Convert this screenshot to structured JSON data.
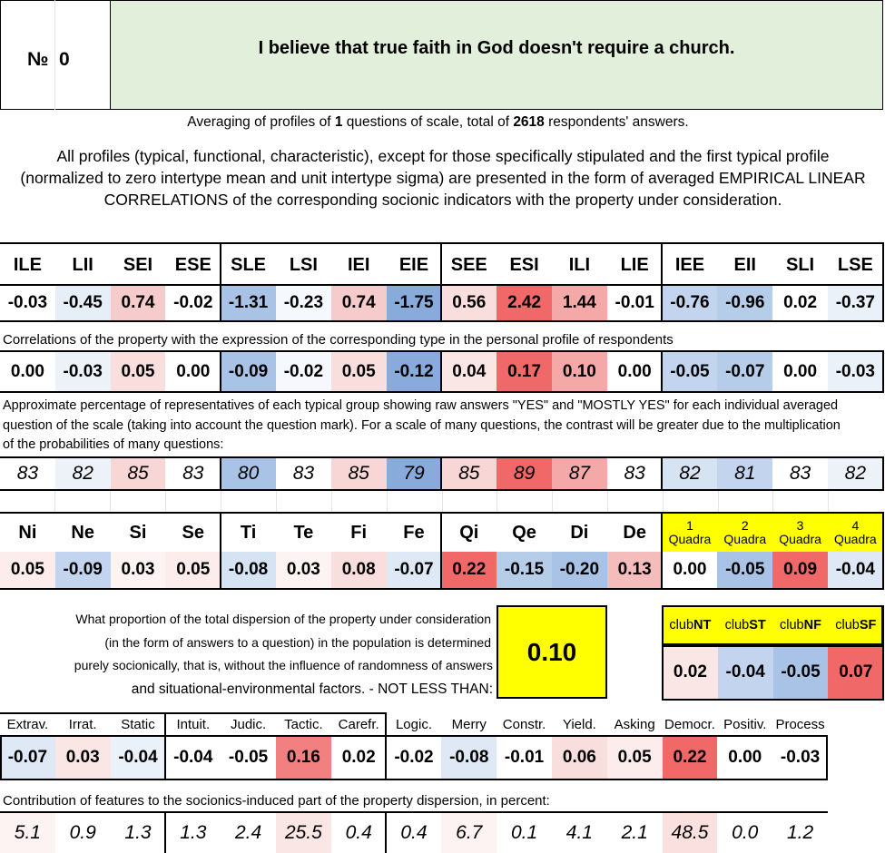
{
  "header": {
    "number_label": "№",
    "number_value": "0",
    "statement": "I believe that true faith in God doesn't require a church."
  },
  "summary": {
    "prefix": "Averaging of profiles of ",
    "questions": "1",
    "middle": " questions of scale, total of ",
    "respondents": "2618",
    "suffix": " respondents' answers."
  },
  "description": "All profiles (typical, functional, characteristic), except for those specifically stipulated and the first typical profile (normalized to zero intertype mean and unit intertype sigma) are presented in the form of averaged EMPIRICAL LINEAR CORRELATIONS of the corresponding socionic indicators with the property under consideration.",
  "types": {
    "labels": [
      "ILE",
      "LII",
      "SEI",
      "ESE",
      "SLE",
      "LSI",
      "IEI",
      "EIE",
      "SEE",
      "ESI",
      "ILI",
      "LIE",
      "IEE",
      "EII",
      "SLI",
      "LSE"
    ],
    "normalized": [
      "-0.03",
      "-0.45",
      "0.74",
      "-0.02",
      "-1.31",
      "-0.23",
      "0.74",
      "-1.75",
      "0.56",
      "2.42",
      "1.44",
      "-0.01",
      "-0.76",
      "-0.96",
      "0.02",
      "-0.37"
    ],
    "normalized_colors": [
      "#ffffff",
      "#e6eef8",
      "#f6cbcb",
      "#ffffff",
      "#a9c3e6",
      "#f5f8fc",
      "#f6cbcb",
      "#88abdc",
      "#f9dede",
      "#f06868",
      "#f5a8a8",
      "#ffffff",
      "#c3d5ee",
      "#b6cde9",
      "#ffffff",
      "#ebf1f9"
    ],
    "correlation_note": "Correlations of the property with the expression of the corresponding type in the personal profile of respondents",
    "correlations": [
      "0.00",
      "-0.03",
      "0.05",
      "0.00",
      "-0.09",
      "-0.02",
      "0.05",
      "-0.12",
      "0.04",
      "0.17",
      "0.10",
      "0.00",
      "-0.05",
      "-0.07",
      "0.00",
      "-0.03"
    ],
    "correlation_colors": [
      "#ffffff",
      "#edf2f9",
      "#f9dede",
      "#ffffff",
      "#a9c3e6",
      "#f5f8fc",
      "#f9dede",
      "#88abdc",
      "#fbe6e6",
      "#f06868",
      "#f5a8a8",
      "#ffffff",
      "#c3d5ee",
      "#b6cde9",
      "#ffffff",
      "#ebf1f9"
    ],
    "percentage_note": "Approximate percentage of representatives of each typical group showing raw answers \"YES\" and \"MOSTLY YES\" for each individual averaged question of the scale (taking into account the question mark). For a scale of many questions, the contrast will be greater due to the multiplication of the probabilities of many questions:",
    "percentages": [
      "83",
      "82",
      "85",
      "83",
      "80",
      "83",
      "85",
      "79",
      "85",
      "89",
      "87",
      "83",
      "82",
      "81",
      "83",
      "82"
    ],
    "percentage_colors": [
      "#ffffff",
      "#edf2f9",
      "#f9d6d6",
      "#ffffff",
      "#a9c3e6",
      "#ffffff",
      "#f9d6d6",
      "#88abdc",
      "#f9d6d6",
      "#f06868",
      "#f5a8a8",
      "#ffffff",
      "#d6e3f3",
      "#c3d5ee",
      "#ffffff",
      "#edf2f9"
    ]
  },
  "functions": {
    "labels": [
      "Ni",
      "Ne",
      "Si",
      "Se",
      "Ti",
      "Te",
      "Fi",
      "Fe",
      "Qi",
      "Qe",
      "Di",
      "De"
    ],
    "values": [
      "0.05",
      "-0.09",
      "0.03",
      "0.05",
      "-0.08",
      "0.03",
      "0.08",
      "-0.07",
      "0.22",
      "-0.15",
      "-0.20",
      "0.13"
    ],
    "colors": [
      "#fcecec",
      "#c3d5ee",
      "#fdf3f3",
      "#fcecec",
      "#d6e3f3",
      "#fdf3f3",
      "#f9dede",
      "#dfe9f5",
      "#f06868",
      "#b6cde9",
      "#a9c3e6",
      "#f5bcbc"
    ],
    "quadra_labels": [
      [
        "1",
        "Quadra"
      ],
      [
        "2",
        "Quadra"
      ],
      [
        "3",
        "Quadra"
      ],
      [
        "4",
        "Quadra"
      ]
    ],
    "quadra_values": [
      "0.00",
      "-0.05",
      "0.09",
      "-0.04"
    ],
    "quadra_colors": [
      "#ffffff",
      "#a9c3e6",
      "#f06868",
      "#dfe9f5"
    ]
  },
  "dispersion": {
    "lines": [
      "What proportion of the total dispersion of the property under consideration",
      "(in the form of answers to a question) in the population is determined",
      "purely socionically, that is, without the influence of randomness of answers",
      "and situational-environmental factors. - NOT LESS THAN:"
    ],
    "value": "0.10",
    "club_prefix": "club",
    "clubs": [
      "NT",
      "ST",
      "NF",
      "SF"
    ],
    "club_values": [
      "0.02",
      "-0.04",
      "-0.05",
      "0.07"
    ],
    "club_colors": [
      "#fbe6e6",
      "#c3d5ee",
      "#a9c3e6",
      "#f06868"
    ]
  },
  "traits": {
    "labels": [
      "Extrav.",
      "Irrat.",
      "Static",
      "Intuit.",
      "Judic.",
      "Tactic.",
      "Carefr.",
      "Logic.",
      "Merry",
      "Constr.",
      "Yield.",
      "Asking",
      "Democr.",
      "Positiv.",
      "Process"
    ],
    "values": [
      "-0.07",
      "0.03",
      "-0.04",
      "-0.04",
      "-0.05",
      "0.16",
      "0.02",
      "-0.02",
      "-0.08",
      "-0.01",
      "0.06",
      "0.05",
      "0.22",
      "0.00",
      "-0.03"
    ],
    "colors": [
      "#dfe9f5",
      "#fbe6e6",
      "#ebf1f9",
      "#ffffff",
      "#ffffff",
      "#f28080",
      "#ffffff",
      "#ffffff",
      "#dfe9f5",
      "#ffffff",
      "#f9dede",
      "#fcecec",
      "#f06868",
      "#ffffff",
      "#ffffff"
    ],
    "contribution_note": "Contribution of features to the socionics-induced part of the property dispersion, in percent:",
    "contributions": [
      "5.1",
      "0.9",
      "1.3",
      "1.3",
      "2.4",
      "25.5",
      "0.4",
      "0.4",
      "6.7",
      "0.1",
      "4.1",
      "2.1",
      "48.5",
      "0.0",
      "1.2"
    ],
    "contribution_colors": [
      "#fdf3f3",
      "#ffffff",
      "#ffffff",
      "#ffffff",
      "#ffffff",
      "#fbe6e6",
      "#ffffff",
      "#ffffff",
      "#fdf3f3",
      "#ffffff",
      "#ffffff",
      "#ffffff",
      "#fbe0e0",
      "#ffffff",
      "#ffffff"
    ]
  },
  "colors": {
    "statement_bg": "#e2efda",
    "highlight_yellow": "#ffff00"
  }
}
